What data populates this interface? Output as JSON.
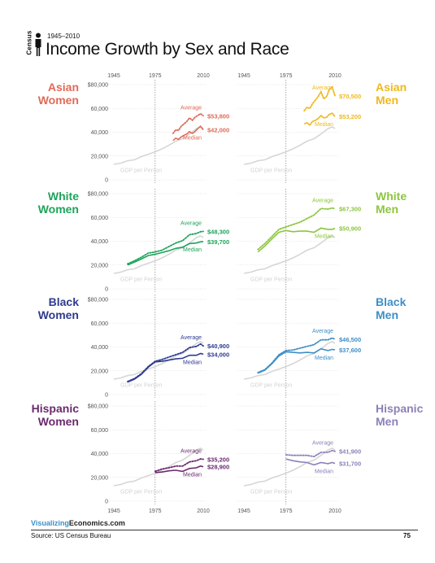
{
  "header": {
    "period": "1945–2010",
    "census_label": "Census",
    "title": "Income Growth by Sex and Race"
  },
  "footer": {
    "brand_part1": "Visualizing",
    "brand_part2": "Economics.com",
    "source": "Source: US Census Bureau",
    "page_number": "75"
  },
  "colors": {
    "gdp": "#d6d6d6",
    "grid": "#dcdcdc",
    "guide_line": "#888888",
    "asian_women": "#e06a57",
    "asian_men": "#f0b81c",
    "white_women": "#1ea45a",
    "white_men": "#8cc63f",
    "black_women": "#2e3b8f",
    "black_men": "#3d8fc6",
    "hispanic_women": "#6b2a6e",
    "hispanic_men": "#8d80b8"
  },
  "chart_data": [
    {
      "type": "line",
      "title": "Asian Women",
      "color_key": "asian_women",
      "side": "left",
      "x_ticks": [
        1945,
        1975,
        2010
      ],
      "x_ticks_shown": true,
      "y_ticks": [
        "$80,000",
        "60,000",
        "40,000",
        "20,000",
        "0"
      ],
      "ylim": [
        0,
        80000
      ],
      "xlim": [
        1945,
        2010
      ],
      "gdp_label": "GDP per Person",
      "series": [
        {
          "name": "Average",
          "style": "dotted",
          "end_label": "$53,800",
          "x": [
            1988,
            1990,
            1992,
            1994,
            1996,
            1998,
            2000,
            2002,
            2004,
            2006,
            2008,
            2010
          ],
          "y": [
            39000,
            42000,
            41500,
            45000,
            47000,
            49000,
            52000,
            50000,
            52500,
            54000,
            55500,
            53800
          ]
        },
        {
          "name": "Median",
          "style": "solid",
          "end_label": "$42,000",
          "x": [
            1988,
            1990,
            1992,
            1994,
            1996,
            1998,
            2000,
            2002,
            2004,
            2006,
            2008,
            2010
          ],
          "y": [
            33000,
            35000,
            34000,
            36000,
            37500,
            38500,
            40500,
            39000,
            40500,
            43000,
            45000,
            42000
          ]
        }
      ],
      "gdp": {
        "x": [
          1945,
          1950,
          1955,
          1960,
          1965,
          1970,
          1975,
          1980,
          1985,
          1990,
          1995,
          2000,
          2005,
          2008,
          2010
        ],
        "y": [
          13000,
          14000,
          16000,
          16800,
          19500,
          21500,
          23500,
          26000,
          29000,
          32500,
          34500,
          38500,
          43000,
          44500,
          43000
        ]
      }
    },
    {
      "type": "line",
      "title": "Asian Men",
      "color_key": "asian_men",
      "side": "right",
      "x_ticks": [
        1945,
        1975,
        2010
      ],
      "x_ticks_shown": true,
      "y_ticks": [],
      "ylim": [
        0,
        80000
      ],
      "xlim": [
        1945,
        2010
      ],
      "gdp_label": "GDP per Person",
      "series": [
        {
          "name": "Average",
          "style": "dotted",
          "end_label": "$70,500",
          "x": [
            1988,
            1990,
            1992,
            1994,
            1996,
            1998,
            2000,
            2002,
            2004,
            2006,
            2008,
            2010
          ],
          "y": [
            58000,
            61000,
            60000,
            64000,
            67000,
            70000,
            74000,
            68000,
            70000,
            76000,
            78000,
            70500
          ]
        },
        {
          "name": "Median",
          "style": "solid",
          "end_label": "$53,200",
          "x": [
            1988,
            1990,
            1992,
            1994,
            1996,
            1998,
            2000,
            2002,
            2004,
            2006,
            2008,
            2010
          ],
          "y": [
            47000,
            48000,
            46000,
            49000,
            50000,
            51500,
            54000,
            52000,
            52500,
            55000,
            56000,
            53200
          ]
        }
      ],
      "gdp": {
        "x": [
          1945,
          1950,
          1955,
          1960,
          1965,
          1970,
          1975,
          1980,
          1985,
          1990,
          1995,
          2000,
          2005,
          2008,
          2010
        ],
        "y": [
          13000,
          14000,
          16000,
          16800,
          19500,
          21500,
          23500,
          26000,
          29000,
          32500,
          34500,
          38500,
          43000,
          44500,
          43000
        ]
      }
    },
    {
      "type": "line",
      "title": "White Women",
      "color_key": "white_women",
      "side": "left",
      "x_ticks": [],
      "x_ticks_shown": false,
      "y_ticks": [
        "$80,000",
        "60,000",
        "40,000",
        "20,000",
        "0"
      ],
      "ylim": [
        0,
        80000
      ],
      "xlim": [
        1945,
        2010
      ],
      "gdp_label": "GDP per Person",
      "series": [
        {
          "name": "Average",
          "style": "dotted",
          "end_label": "$48,300",
          "x": [
            1955,
            1960,
            1965,
            1970,
            1975,
            1980,
            1985,
            1990,
            1995,
            2000,
            2005,
            2008,
            2010
          ],
          "y": [
            21000,
            23500,
            26500,
            30000,
            31000,
            32500,
            35500,
            38500,
            40500,
            45500,
            46500,
            48000,
            48300
          ]
        },
        {
          "name": "Median",
          "style": "solid",
          "end_label": "$39,700",
          "x": [
            1955,
            1960,
            1965,
            1970,
            1975,
            1980,
            1985,
            1990,
            1995,
            2000,
            2005,
            2008,
            2010
          ],
          "y": [
            20000,
            22500,
            25000,
            28000,
            29000,
            30500,
            32000,
            34000,
            35000,
            38000,
            38500,
            39500,
            39700
          ]
        }
      ],
      "gdp": {
        "x": [
          1945,
          1950,
          1955,
          1960,
          1965,
          1970,
          1975,
          1980,
          1985,
          1990,
          1995,
          2000,
          2005,
          2008,
          2010
        ],
        "y": [
          13000,
          14000,
          16000,
          16800,
          19500,
          21500,
          23500,
          26000,
          29000,
          32500,
          34500,
          38500,
          43000,
          44500,
          43000
        ]
      }
    },
    {
      "type": "line",
      "title": "White Men",
      "color_key": "white_men",
      "side": "right",
      "x_ticks": [],
      "x_ticks_shown": false,
      "y_ticks": [],
      "ylim": [
        0,
        80000
      ],
      "xlim": [
        1945,
        2010
      ],
      "gdp_label": "GDP per Person",
      "series": [
        {
          "name": "Average",
          "style": "dotted",
          "end_label": "$67,300",
          "x": [
            1955,
            1960,
            1965,
            1970,
            1975,
            1980,
            1985,
            1990,
            1995,
            2000,
            2005,
            2008,
            2010
          ],
          "y": [
            33000,
            38000,
            44000,
            50000,
            52000,
            54000,
            56000,
            59000,
            62000,
            67500,
            67000,
            68000,
            67300
          ]
        },
        {
          "name": "Median",
          "style": "solid",
          "end_label": "$50,900",
          "x": [
            1955,
            1960,
            1965,
            1970,
            1975,
            1980,
            1985,
            1990,
            1995,
            2000,
            2005,
            2008,
            2010
          ],
          "y": [
            31000,
            36000,
            42000,
            47500,
            49000,
            48000,
            48500,
            48500,
            47500,
            51000,
            50000,
            50000,
            50900
          ]
        }
      ],
      "gdp": {
        "x": [
          1945,
          1950,
          1955,
          1960,
          1965,
          1970,
          1975,
          1980,
          1985,
          1990,
          1995,
          2000,
          2005,
          2008,
          2010
        ],
        "y": [
          13000,
          14000,
          16000,
          16800,
          19500,
          21500,
          23500,
          26000,
          29000,
          32500,
          34500,
          38500,
          43000,
          44500,
          43000
        ]
      }
    },
    {
      "type": "line",
      "title": "Black Women",
      "color_key": "black_women",
      "side": "left",
      "x_ticks": [],
      "x_ticks_shown": false,
      "y_ticks": [
        "$80,000",
        "60,000",
        "40,000",
        "20,000",
        "0"
      ],
      "ylim": [
        0,
        80000
      ],
      "xlim": [
        1945,
        2010
      ],
      "gdp_label": "GDP per Person",
      "series": [
        {
          "name": "Average",
          "style": "dotted",
          "end_label": "$40,900",
          "x": [
            1955,
            1960,
            1965,
            1970,
            1975,
            1980,
            1985,
            1990,
            1995,
            2000,
            2005,
            2008,
            2010
          ],
          "y": [
            11000,
            13500,
            17500,
            23500,
            28000,
            29500,
            31500,
            33500,
            35500,
            39500,
            40500,
            42500,
            40900
          ]
        },
        {
          "name": "Median",
          "style": "solid",
          "end_label": "$34,000",
          "x": [
            1955,
            1960,
            1965,
            1970,
            1975,
            1980,
            1985,
            1990,
            1995,
            2000,
            2005,
            2008,
            2010
          ],
          "y": [
            10500,
            13000,
            17000,
            23000,
            27500,
            28000,
            29000,
            30000,
            30500,
            33000,
            33000,
            34500,
            34000
          ]
        }
      ],
      "gdp": {
        "x": [
          1945,
          1950,
          1955,
          1960,
          1965,
          1970,
          1975,
          1980,
          1985,
          1990,
          1995,
          2000,
          2005,
          2008,
          2010
        ],
        "y": [
          13000,
          14000,
          16000,
          16800,
          19500,
          21500,
          23500,
          26000,
          29000,
          32500,
          34500,
          38500,
          43000,
          44500,
          43000
        ]
      }
    },
    {
      "type": "line",
      "title": "Black Men",
      "color_key": "black_men",
      "side": "right",
      "x_ticks": [],
      "x_ticks_shown": false,
      "y_ticks": [],
      "ylim": [
        0,
        80000
      ],
      "xlim": [
        1945,
        2010
      ],
      "gdp_label": "GDP per Person",
      "series": [
        {
          "name": "Average",
          "style": "dotted",
          "end_label": "$46,500",
          "x": [
            1955,
            1960,
            1965,
            1970,
            1975,
            1980,
            1985,
            1990,
            1995,
            2000,
            2005,
            2008,
            2010
          ],
          "y": [
            18500,
            21000,
            26500,
            33500,
            37000,
            37500,
            39000,
            40500,
            42000,
            46000,
            46000,
            47500,
            46500
          ]
        },
        {
          "name": "Median",
          "style": "solid",
          "end_label": "$37,600",
          "x": [
            1955,
            1960,
            1965,
            1970,
            1975,
            1980,
            1985,
            1990,
            1995,
            2000,
            2005,
            2008,
            2010
          ],
          "y": [
            18000,
            20500,
            26000,
            32500,
            36000,
            35500,
            35000,
            35500,
            35000,
            38500,
            37000,
            38000,
            37600
          ]
        }
      ],
      "gdp": {
        "x": [
          1945,
          1950,
          1955,
          1960,
          1965,
          1970,
          1975,
          1980,
          1985,
          1990,
          1995,
          2000,
          2005,
          2008,
          2010
        ],
        "y": [
          13000,
          14000,
          16000,
          16800,
          19500,
          21500,
          23500,
          26000,
          29000,
          32500,
          34500,
          38500,
          43000,
          44500,
          43000
        ]
      }
    },
    {
      "type": "line",
      "title": "Hispanic Women",
      "color_key": "hispanic_women",
      "side": "left",
      "x_ticks": [
        1945,
        1975,
        2010
      ],
      "x_ticks_shown": true,
      "y_ticks": [
        "$80,000",
        "60,000",
        "40,000",
        "20,000",
        "0"
      ],
      "ylim": [
        0,
        80000
      ],
      "xlim": [
        1945,
        2010
      ],
      "gdp_label": "GDP per Person",
      "series": [
        {
          "name": "Average",
          "style": "dotted",
          "end_label": "$35,200",
          "x": [
            1975,
            1980,
            1985,
            1990,
            1995,
            2000,
            2005,
            2008,
            2010
          ],
          "y": [
            25000,
            27000,
            28000,
            29500,
            29500,
            33000,
            34000,
            35500,
            35200
          ]
        },
        {
          "name": "Median",
          "style": "solid",
          "end_label": "$28,900",
          "x": [
            1975,
            1980,
            1985,
            1990,
            1995,
            2000,
            2005,
            2008,
            2010
          ],
          "y": [
            24000,
            24500,
            25500,
            26000,
            25000,
            27500,
            28000,
            29500,
            28900
          ]
        }
      ],
      "gdp": {
        "x": [
          1945,
          1950,
          1955,
          1960,
          1965,
          1970,
          1975,
          1980,
          1985,
          1990,
          1995,
          2000,
          2005,
          2008,
          2010
        ],
        "y": [
          13000,
          14000,
          16000,
          16800,
          19500,
          21500,
          23500,
          26000,
          29000,
          32500,
          34500,
          38500,
          43000,
          44500,
          43000
        ]
      }
    },
    {
      "type": "line",
      "title": "Hispanic Men",
      "color_key": "hispanic_men",
      "side": "right",
      "x_ticks": [
        1945,
        1975,
        2010
      ],
      "x_ticks_shown": true,
      "y_ticks": [],
      "ylim": [
        0,
        80000
      ],
      "xlim": [
        1945,
        2010
      ],
      "gdp_label": "GDP per Person",
      "series": [
        {
          "name": "Average",
          "style": "dotted",
          "end_label": "$41,900",
          "x": [
            1975,
            1980,
            1985,
            1990,
            1995,
            2000,
            2005,
            2008,
            2010
          ],
          "y": [
            39000,
            38500,
            38500,
            38500,
            37500,
            41000,
            41000,
            42500,
            41900
          ]
        },
        {
          "name": "Median",
          "style": "solid",
          "end_label": "$31,700",
          "x": [
            1975,
            1980,
            1985,
            1990,
            1995,
            2000,
            2005,
            2008,
            2010
          ],
          "y": [
            35500,
            34000,
            33000,
            32500,
            30500,
            32500,
            31500,
            32500,
            31700
          ]
        }
      ],
      "gdp": {
        "x": [
          1945,
          1950,
          1955,
          1960,
          1965,
          1970,
          1975,
          1980,
          1985,
          1990,
          1995,
          2000,
          2005,
          2008,
          2010
        ],
        "y": [
          13000,
          14000,
          16000,
          16800,
          19500,
          21500,
          23500,
          26000,
          29000,
          32500,
          34500,
          38500,
          43000,
          44500,
          43000
        ]
      }
    }
  ]
}
